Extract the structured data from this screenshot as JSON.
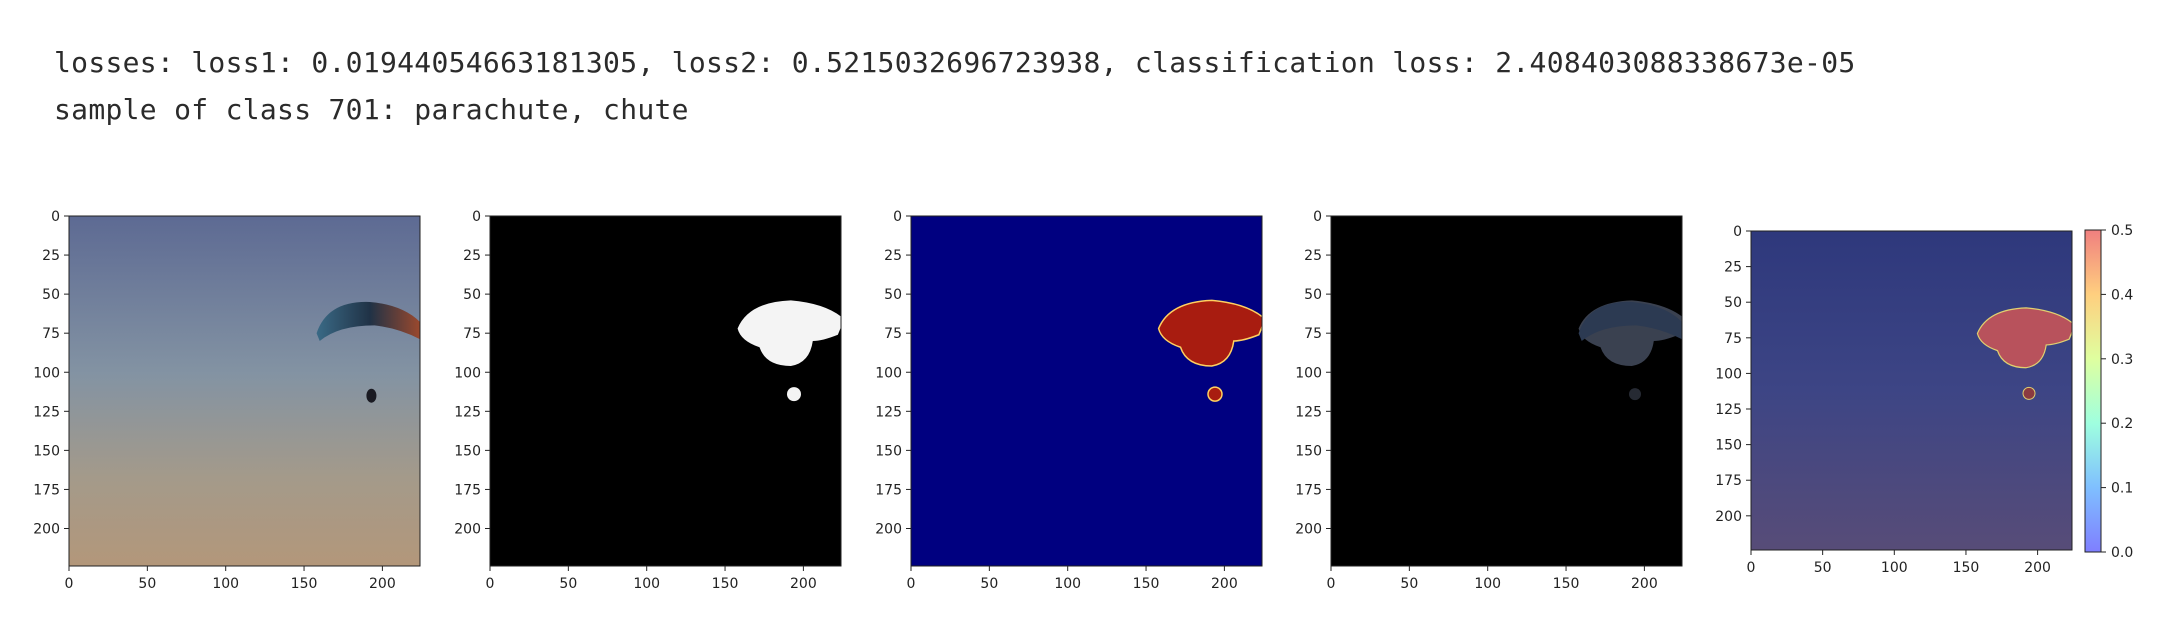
{
  "output": {
    "line1": "losses: loss1: 0.01944054663181305, loss2: 0.5215032696723938, classification loss: 2.408403088338673e-05",
    "line2": "sample of class 701: parachute, chute"
  },
  "chart_data": [
    {
      "type": "image",
      "content": "original photo: paraglider in dusk sky",
      "xlim": [
        0,
        224
      ],
      "ylim": [
        0,
        224
      ],
      "xticks": [
        0,
        50,
        100,
        150,
        200
      ],
      "yticks": [
        0,
        25,
        50,
        75,
        100,
        125,
        150,
        175,
        200
      ]
    },
    {
      "type": "image",
      "content": "binary mask (white object on black)",
      "xlim": [
        0,
        224
      ],
      "ylim": [
        0,
        224
      ],
      "xticks": [
        0,
        50,
        100,
        150,
        200
      ],
      "yticks": [
        0,
        25,
        50,
        75,
        100,
        125,
        150,
        175,
        200
      ]
    },
    {
      "type": "heatmap",
      "colormap": "jet",
      "content": "mask heatmap",
      "xlim": [
        0,
        224
      ],
      "ylim": [
        0,
        224
      ],
      "xticks": [
        0,
        50,
        100,
        150,
        200
      ],
      "yticks": [
        0,
        25,
        50,
        75,
        100,
        125,
        150,
        175,
        200
      ]
    },
    {
      "type": "image",
      "content": "masked image (object only, dark background)",
      "xlim": [
        0,
        224
      ],
      "ylim": [
        0,
        224
      ],
      "xticks": [
        0,
        50,
        100,
        150,
        200
      ],
      "yticks": [
        0,
        25,
        50,
        75,
        100,
        125,
        150,
        175,
        200
      ]
    },
    {
      "type": "heatmap",
      "colormap": "jet overlay",
      "content": "heatmap overlay on original image",
      "xlim": [
        0,
        224
      ],
      "ylim": [
        0,
        224
      ],
      "xticks": [
        0,
        50,
        100,
        150,
        200
      ],
      "yticks": [
        0,
        25,
        50,
        75,
        100,
        125,
        150,
        175,
        200
      ],
      "colorbar": {
        "ticks": [
          0.0,
          0.1,
          0.2,
          0.3,
          0.4,
          0.5
        ],
        "range": [
          0.0,
          0.5
        ]
      }
    }
  ]
}
